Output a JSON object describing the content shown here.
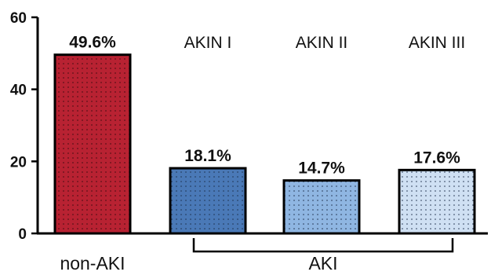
{
  "chart_data": {
    "type": "bar",
    "categories": [
      "non-AKI",
      "AKIN I",
      "AKIN II",
      "AKIN III"
    ],
    "values": [
      49.6,
      18.1,
      14.7,
      17.6
    ],
    "value_labels": [
      "49.6%",
      "18.1%",
      "14.7%",
      "17.6%"
    ],
    "bar_colors": [
      "#b82232",
      "#4a79b7",
      "#8fb6e2",
      "#cfe0f3"
    ],
    "ylim": [
      0,
      60
    ],
    "yticks": [
      0,
      20,
      40,
      60
    ],
    "ytick_labels": [
      "0",
      "20",
      "40",
      "60"
    ],
    "stage_labels": [
      "AKIN I",
      "AKIN II",
      "AKIN III"
    ],
    "x_group_labels": {
      "non_aki": "non-AKI",
      "aki": "AKI"
    },
    "grid": false,
    "legend": "none",
    "pattern": "dotted"
  }
}
